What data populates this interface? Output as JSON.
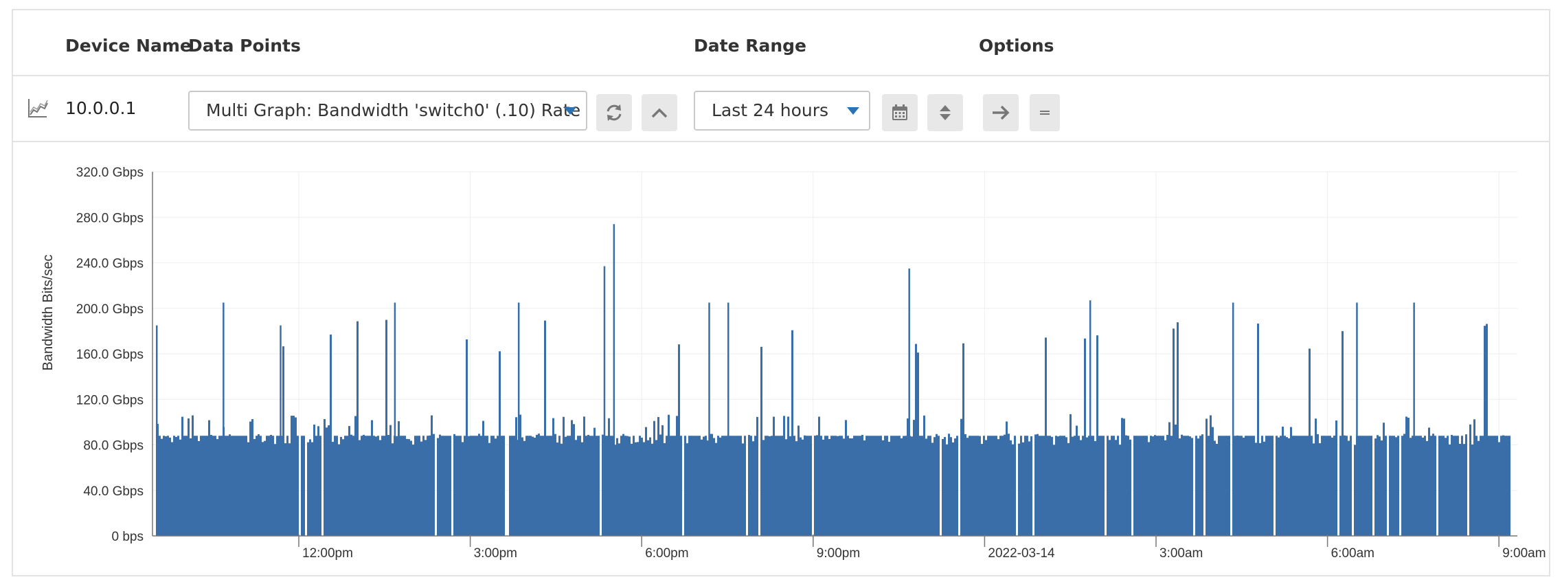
{
  "header": {
    "columns": [
      "Device Name",
      "Data Points",
      "Date Range",
      "Options"
    ]
  },
  "device": {
    "name": "10.0.0.1",
    "icon": "line-chart-icon"
  },
  "data_points": {
    "selected": "Multi Graph: Bandwidth 'switch0' (.10) Rate"
  },
  "date_range": {
    "selected": "Last 24 hours"
  },
  "buttons": {
    "refresh_icon": "refresh-icon",
    "collapse_icon": "chevron-up-icon",
    "calendar_icon": "calendar-icon",
    "sort_icon": "sort-icon",
    "go_icon": "arrow-right-icon",
    "menu_icon": "menu-icon"
  },
  "colors": {
    "series": "#3a6ea8",
    "caret": "#2a72b5"
  },
  "chart_data": {
    "type": "bar",
    "ylabel": "Bandwidth Bits/sec",
    "yticks": [
      "0 bps",
      "40.0 Gbps",
      "80.0 Gbps",
      "120.0 Gbps",
      "160.0 Gbps",
      "200.0 Gbps",
      "240.0 Gbps",
      "280.0 Gbps",
      "320.0 Gbps"
    ],
    "ylim_gbps": [
      0,
      320
    ],
    "xticks": [
      "12:00pm",
      "3:00pm",
      "6:00pm",
      "9:00pm",
      "2022-03-14",
      "3:00am",
      "6:00am",
      "9:00am"
    ],
    "grid": true,
    "series": [
      {
        "baseline_gbps": 88,
        "spikes": [
          {
            "time": "2022-03-13 09:30",
            "gbps": 185
          },
          {
            "time": "2022-03-13 10:40",
            "gbps": 205
          },
          {
            "time": "2022-03-13 11:40",
            "gbps": 185
          },
          {
            "time": "2022-03-13 13:40",
            "gbps": 205
          },
          {
            "time": "2022-03-13 15:50",
            "gbps": 205
          },
          {
            "time": "2022-03-13 17:20",
            "gbps": 237
          },
          {
            "time": "2022-03-13 17:30",
            "gbps": 274
          },
          {
            "time": "2022-03-13 19:10",
            "gbps": 205
          },
          {
            "time": "2022-03-13 19:30",
            "gbps": 205
          },
          {
            "time": "2022-03-13 22:40",
            "gbps": 235
          },
          {
            "time": "2022-03-14 01:50",
            "gbps": 207
          },
          {
            "time": "2022-03-14 04:20",
            "gbps": 205
          },
          {
            "time": "2022-03-14 06:30",
            "gbps": 205
          },
          {
            "time": "2022-03-14 07:30",
            "gbps": 205
          }
        ]
      }
    ]
  }
}
